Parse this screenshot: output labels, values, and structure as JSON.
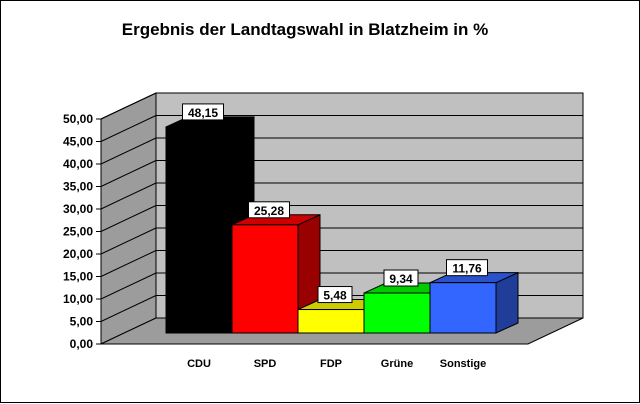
{
  "chart_data": {
    "type": "bar",
    "title": "Ergebnis der Landtagswahl in Blatzheim in %",
    "categories": [
      "CDU",
      "SPD",
      "FDP",
      "Grüne",
      "Sonstige"
    ],
    "values": [
      48.15,
      25.28,
      5.48,
      9.34,
      11.76
    ],
    "value_labels": [
      "48,15",
      "25,28",
      "5,48",
      "9,34",
      "11,76"
    ],
    "colors": [
      "#000000",
      "#ff0000",
      "#ffff00",
      "#00ff00",
      "#3366ff"
    ],
    "ylim": [
      0,
      50
    ],
    "yticks": [
      "0,00",
      "5,00",
      "10,00",
      "15,00",
      "20,00",
      "25,00",
      "30,00",
      "35,00",
      "40,00",
      "45,00",
      "50,00"
    ],
    "grid": true,
    "style": "3d-bar",
    "legend": "none"
  }
}
